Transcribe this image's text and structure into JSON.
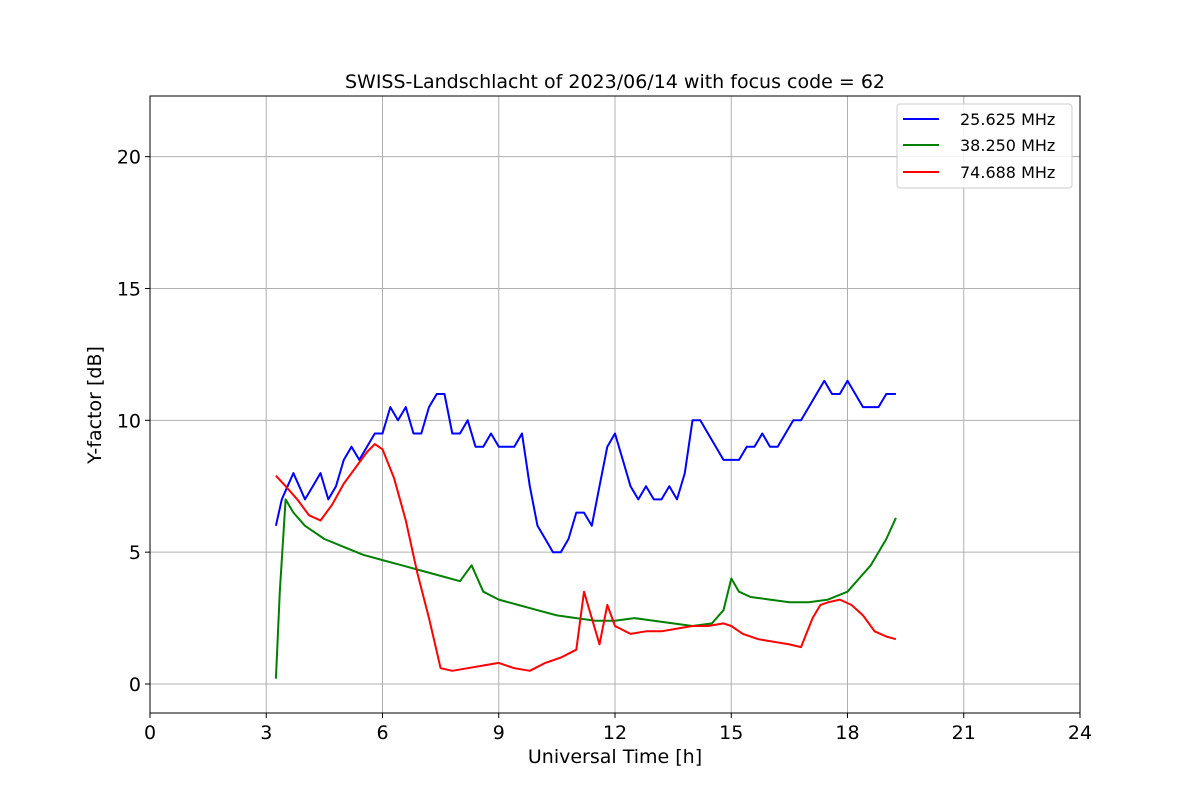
{
  "chart_data": {
    "type": "line",
    "title": "SWISS-Landschlacht of 2023/06/14 with focus code = 62",
    "xlabel": "Universal Time [h]",
    "ylabel": "Y-factor [dB]",
    "xlim": [
      0,
      24
    ],
    "ylim": [
      -1.1,
      22.3
    ],
    "xticks": [
      0,
      3,
      6,
      9,
      12,
      15,
      18,
      21,
      24
    ],
    "yticks": [
      0,
      5,
      10,
      15,
      20
    ],
    "grid": true,
    "legend_position": "top-right",
    "series": [
      {
        "name": "25.625 MHz",
        "color": "#0000ff",
        "x": [
          3.25,
          3.4,
          3.55,
          3.7,
          3.85,
          4.0,
          4.2,
          4.4,
          4.6,
          4.8,
          5.0,
          5.2,
          5.4,
          5.6,
          5.8,
          6.0,
          6.2,
          6.4,
          6.6,
          6.8,
          7.0,
          7.2,
          7.4,
          7.6,
          7.8,
          8.0,
          8.2,
          8.4,
          8.6,
          8.8,
          9.0,
          9.2,
          9.4,
          9.6,
          9.8,
          10.0,
          10.2,
          10.4,
          10.6,
          10.8,
          11.0,
          11.2,
          11.4,
          11.6,
          11.8,
          12.0,
          12.2,
          12.4,
          12.6,
          12.8,
          13.0,
          13.2,
          13.4,
          13.6,
          13.8,
          14.0,
          14.2,
          14.4,
          14.6,
          14.8,
          15.0,
          15.2,
          15.4,
          15.6,
          15.8,
          16.0,
          16.2,
          16.4,
          16.6,
          16.8,
          17.0,
          17.2,
          17.4,
          17.6,
          17.8,
          18.0,
          18.2,
          18.4,
          18.6,
          18.8,
          19.0,
          19.25
        ],
        "y": [
          6.0,
          7.0,
          7.5,
          8.0,
          7.5,
          7.0,
          7.5,
          8.0,
          7.0,
          7.5,
          8.5,
          9.0,
          8.5,
          9.0,
          9.5,
          9.5,
          10.5,
          10.0,
          10.5,
          9.5,
          9.5,
          10.5,
          11.0,
          11.0,
          9.5,
          9.5,
          10.0,
          9.0,
          9.0,
          9.5,
          9.0,
          9.0,
          9.0,
          9.5,
          7.5,
          6.0,
          5.5,
          5.0,
          5.0,
          5.5,
          6.5,
          6.5,
          6.0,
          7.5,
          9.0,
          9.5,
          8.5,
          7.5,
          7.0,
          7.5,
          7.0,
          7.0,
          7.5,
          7.0,
          8.0,
          10.0,
          10.0,
          9.5,
          9.0,
          8.5,
          8.5,
          8.5,
          9.0,
          9.0,
          9.5,
          9.0,
          9.0,
          9.5,
          10.0,
          10.0,
          10.5,
          11.0,
          11.5,
          11.0,
          11.0,
          11.5,
          11.0,
          10.5,
          10.5,
          10.5,
          11.0,
          11.0
        ]
      },
      {
        "name": "38.250 MHz",
        "color": "#008000",
        "x": [
          3.25,
          3.35,
          3.5,
          3.7,
          4.0,
          4.5,
          5.0,
          5.5,
          6.0,
          6.5,
          7.0,
          7.5,
          8.0,
          8.3,
          8.6,
          9.0,
          9.5,
          10.0,
          10.5,
          11.0,
          11.5,
          12.0,
          12.5,
          13.0,
          13.5,
          14.0,
          14.5,
          14.8,
          15.0,
          15.2,
          15.5,
          16.0,
          16.5,
          17.0,
          17.5,
          18.0,
          18.3,
          18.6,
          19.0,
          19.25
        ],
        "y": [
          0.2,
          3.5,
          7.0,
          6.5,
          6.0,
          5.5,
          5.2,
          4.9,
          4.7,
          4.5,
          4.3,
          4.1,
          3.9,
          4.5,
          3.5,
          3.2,
          3.0,
          2.8,
          2.6,
          2.5,
          2.4,
          2.4,
          2.5,
          2.4,
          2.3,
          2.2,
          2.3,
          2.8,
          4.0,
          3.5,
          3.3,
          3.2,
          3.1,
          3.1,
          3.2,
          3.5,
          4.0,
          4.5,
          5.5,
          6.3
        ]
      },
      {
        "name": "74.688 MHz",
        "color": "#ff0000",
        "x": [
          3.25,
          3.5,
          3.8,
          4.1,
          4.4,
          4.7,
          5.0,
          5.3,
          5.6,
          5.8,
          6.0,
          6.3,
          6.6,
          6.9,
          7.2,
          7.5,
          7.8,
          8.2,
          8.6,
          9.0,
          9.4,
          9.8,
          10.2,
          10.6,
          11.0,
          11.2,
          11.4,
          11.6,
          11.8,
          12.0,
          12.4,
          12.8,
          13.2,
          13.6,
          14.0,
          14.4,
          14.8,
          15.0,
          15.3,
          15.7,
          16.1,
          16.5,
          16.8,
          17.1,
          17.3,
          17.5,
          17.8,
          18.1,
          18.4,
          18.7,
          19.0,
          19.25
        ],
        "y": [
          7.9,
          7.5,
          7.0,
          6.4,
          6.2,
          6.8,
          7.6,
          8.2,
          8.8,
          9.1,
          8.9,
          7.8,
          6.2,
          4.2,
          2.5,
          0.6,
          0.5,
          0.6,
          0.7,
          0.8,
          0.6,
          0.5,
          0.8,
          1.0,
          1.3,
          3.5,
          2.5,
          1.5,
          3.0,
          2.2,
          1.9,
          2.0,
          2.0,
          2.1,
          2.2,
          2.2,
          2.3,
          2.2,
          1.9,
          1.7,
          1.6,
          1.5,
          1.4,
          2.5,
          3.0,
          3.1,
          3.2,
          3.0,
          2.6,
          2.0,
          1.8,
          1.7
        ]
      }
    ]
  }
}
